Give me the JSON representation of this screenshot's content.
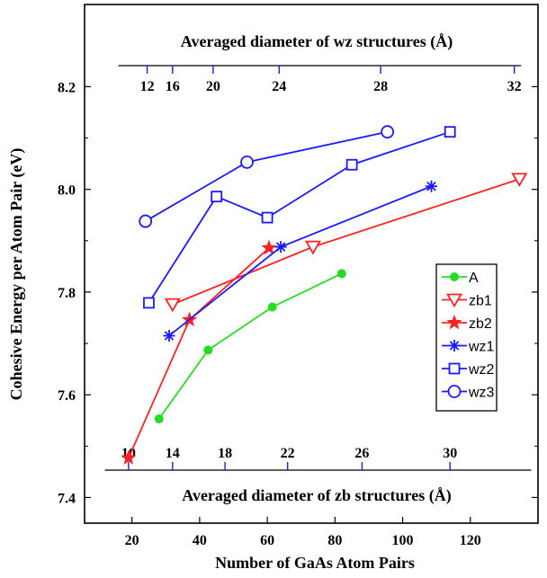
{
  "chart_data": {
    "type": "line",
    "xlabel": "Number of GaAs Atom Pairs",
    "ylabel": "Cohesive Energy per Atom Pair (eV)",
    "xlim": [
      6,
      140
    ],
    "ylim": [
      7.35,
      8.36
    ],
    "x_ticks": [
      20,
      40,
      60,
      80,
      100,
      120
    ],
    "y_ticks": [
      "7.4",
      "7.6",
      "7.8",
      "8.0",
      "8.2"
    ],
    "grid": false,
    "legend_position": "right",
    "top_axis": {
      "label": "Averaged diameter of wz structures (Å)",
      "ticks": [
        {
          "label": "12",
          "x": 24.5
        },
        {
          "label": "16",
          "x": 32
        },
        {
          "label": "20",
          "x": 44
        },
        {
          "label": "24",
          "x": 63.5
        },
        {
          "label": "28",
          "x": 93.5
        },
        {
          "label": "32",
          "x": 133
        }
      ]
    },
    "bottom_axis2": {
      "label": "Averaged diameter of zb structures (Å)",
      "ticks": [
        {
          "label": "10",
          "x": 19
        },
        {
          "label": "14",
          "x": 32
        },
        {
          "label": "18",
          "x": 47.5
        },
        {
          "label": "22",
          "x": 66
        },
        {
          "label": "26",
          "x": 88
        },
        {
          "label": "30",
          "x": 114
        }
      ]
    },
    "series": [
      {
        "name": "A",
        "color": "#22dd22",
        "marker": "dot",
        "x": [
          28,
          42.5,
          61.5,
          82
        ],
        "y": [
          7.553,
          7.687,
          7.771,
          7.836
        ]
      },
      {
        "name": "zb1",
        "color": "#ff2222",
        "marker": "triangle-down",
        "x": [
          32,
          73.5,
          134.5
        ],
        "y": [
          7.776,
          7.888,
          8.02
        ]
      },
      {
        "name": "zb2",
        "color": "#ff2222",
        "marker": "star",
        "x": [
          19,
          37,
          60.5
        ],
        "y": [
          7.477,
          7.746,
          7.886
        ]
      },
      {
        "name": "wz1",
        "color": "#1a1aff",
        "marker": "asterisk",
        "x": [
          31,
          64,
          108.5
        ],
        "y": [
          7.715,
          7.888,
          8.006
        ]
      },
      {
        "name": "wz2",
        "color": "#1a1aff",
        "marker": "square",
        "x": [
          25,
          45,
          60,
          85,
          114
        ],
        "y": [
          7.779,
          7.986,
          7.945,
          8.048,
          8.112
        ]
      },
      {
        "name": "wz3",
        "color": "#1a1aff",
        "marker": "circle",
        "x": [
          24,
          54,
          95.5
        ],
        "y": [
          7.938,
          8.053,
          8.112
        ]
      }
    ]
  }
}
